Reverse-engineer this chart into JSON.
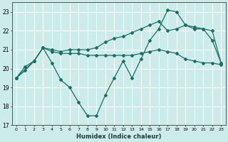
{
  "xlabel": "Humidex (Indice chaleur)",
  "background_color": "#ccecea",
  "grid_color": "#ffffff",
  "line_color": "#1a6e65",
  "xlim": [
    -0.5,
    23.5
  ],
  "ylim": [
    17,
    23.5
  ],
  "yticks": [
    17,
    18,
    19,
    20,
    21,
    22,
    23
  ],
  "xticks": [
    0,
    1,
    2,
    3,
    4,
    5,
    6,
    7,
    8,
    9,
    10,
    11,
    12,
    13,
    14,
    15,
    16,
    17,
    18,
    19,
    20,
    21,
    22,
    23
  ],
  "line1_x": [
    0,
    1,
    2,
    3,
    4,
    5,
    6,
    7,
    8,
    9,
    10,
    11,
    12,
    13,
    14,
    15,
    16,
    17,
    18,
    19,
    20,
    21,
    22,
    23
  ],
  "line1_y": [
    19.5,
    19.9,
    20.4,
    21.1,
    20.3,
    19.4,
    19.0,
    18.2,
    17.5,
    17.5,
    18.6,
    19.5,
    20.4,
    19.5,
    20.5,
    21.5,
    22.1,
    23.1,
    23.0,
    22.3,
    22.2,
    22.1,
    21.5,
    20.3
  ],
  "line2_x": [
    0,
    2,
    3,
    4,
    5,
    6,
    7,
    8,
    9,
    10,
    11,
    12,
    13,
    14,
    15,
    16,
    17,
    18,
    19,
    20,
    21,
    22,
    23
  ],
  "line2_y": [
    19.5,
    20.4,
    21.1,
    21.0,
    20.9,
    21.0,
    21.0,
    21.0,
    21.1,
    21.4,
    21.6,
    21.7,
    21.9,
    22.1,
    22.3,
    22.5,
    22.0,
    22.1,
    22.3,
    22.1,
    22.1,
    22.0,
    20.3
  ],
  "line3_x": [
    0,
    1,
    2,
    3,
    4,
    5,
    6,
    7,
    8,
    9,
    10,
    11,
    12,
    13,
    14,
    15,
    16,
    17,
    18,
    19,
    20,
    21,
    22,
    23
  ],
  "line3_y": [
    19.5,
    20.1,
    20.4,
    21.1,
    20.9,
    20.8,
    20.8,
    20.8,
    20.7,
    20.7,
    20.7,
    20.7,
    20.7,
    20.7,
    20.8,
    20.9,
    21.0,
    20.9,
    20.8,
    20.5,
    20.4,
    20.3,
    20.3,
    20.2
  ]
}
